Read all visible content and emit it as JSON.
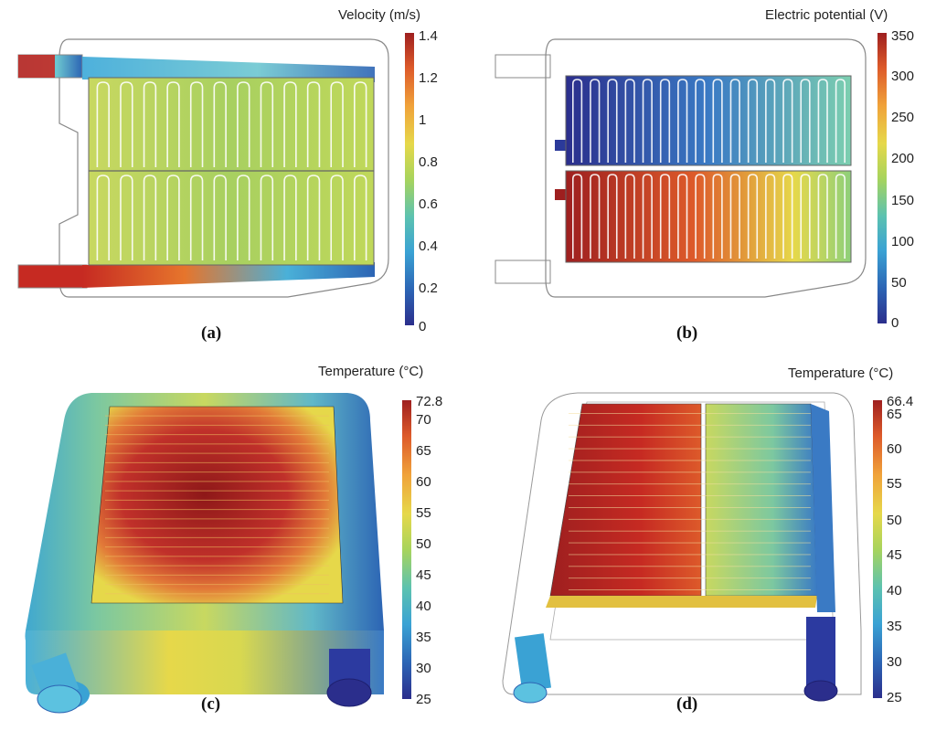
{
  "panels": [
    {
      "id": "a",
      "caption": "(a)",
      "colorbar": {
        "title": "Velocity (m/s)",
        "ticks": [
          "1.4",
          "1.2",
          "1",
          "0.8",
          "0.6",
          "0.4",
          "0.2",
          "0"
        ]
      }
    },
    {
      "id": "b",
      "caption": "(b)",
      "colorbar": {
        "title": "Electric potential (V)",
        "ticks": [
          "350",
          "300",
          "250",
          "200",
          "150",
          "100",
          "50",
          "0"
        ]
      }
    },
    {
      "id": "c",
      "caption": "(c)",
      "colorbar": {
        "title": "Temperature (°C)",
        "ticks": [
          "72.8",
          "70",
          "65",
          "60",
          "55",
          "50",
          "45",
          "40",
          "35",
          "30",
          "25"
        ]
      }
    },
    {
      "id": "d",
      "caption": "(d)",
      "colorbar": {
        "title": "Temperature (°C)",
        "ticks": [
          "66.4",
          "65",
          "60",
          "55",
          "50",
          "45",
          "40",
          "35",
          "30",
          "25"
        ]
      }
    }
  ],
  "colors": {
    "hot": "#b32222",
    "cold": "#2b3a9a",
    "mid": "#e2d64a",
    "frame": "#888888"
  }
}
